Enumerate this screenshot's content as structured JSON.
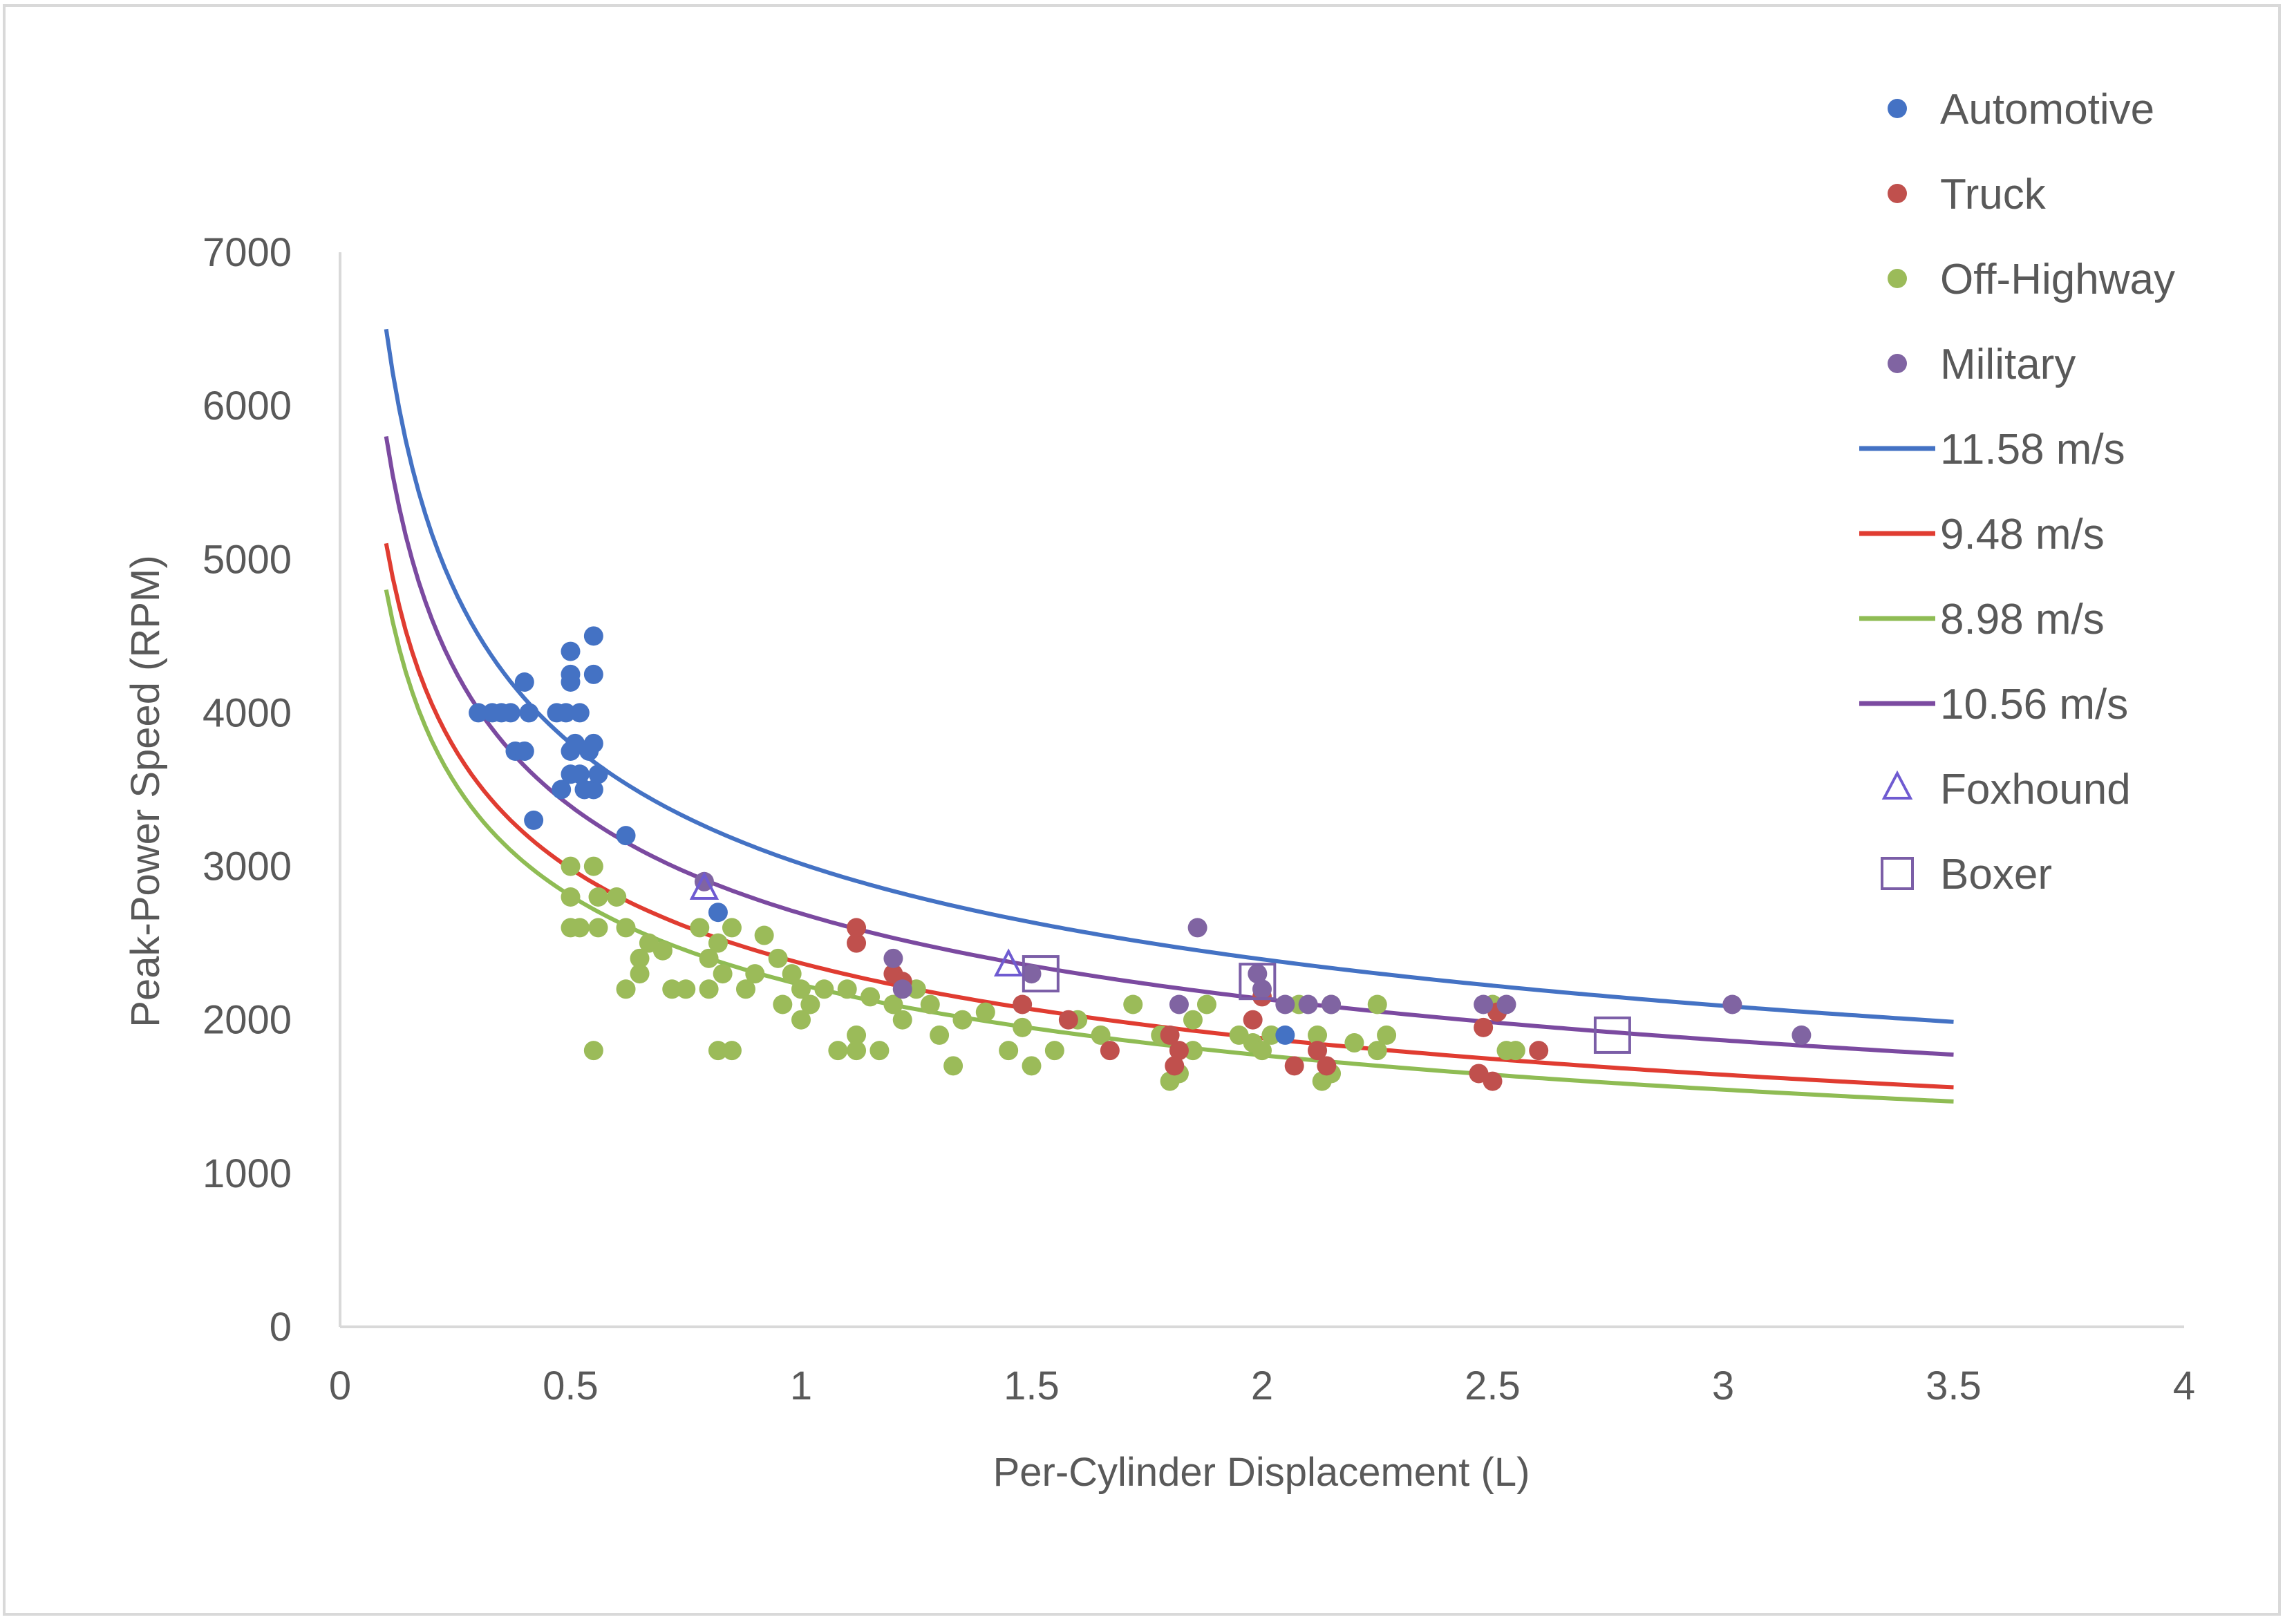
{
  "chart_data": {
    "type": "scatter",
    "title": "",
    "xlabel": "Per-Cylinder Displacement (L)",
    "ylabel": "Peak-Power Speed (RPM)",
    "xlim": [
      0,
      4
    ],
    "ylim": [
      0,
      7000
    ],
    "x_ticks": [
      "0",
      "0.5",
      "1",
      "1.5",
      "2",
      "2.5",
      "3",
      "3.5",
      "4"
    ],
    "y_ticks": [
      "0",
      "1000",
      "2000",
      "3000",
      "4000",
      "5000",
      "6000",
      "7000"
    ],
    "x_tick_values": [
      0,
      0.5,
      1,
      1.5,
      2,
      2.5,
      3,
      3.5,
      4
    ],
    "y_tick_values": [
      0,
      1000,
      2000,
      3000,
      4000,
      5000,
      6000,
      7000
    ],
    "grid": false,
    "legend_position": "top-right",
    "series": [
      {
        "name": "Automotive",
        "kind": "points",
        "color": "#4472c4",
        "marker": "circle",
        "points": [
          [
            0.3,
            4000
          ],
          [
            0.33,
            4000
          ],
          [
            0.35,
            4000
          ],
          [
            0.37,
            4000
          ],
          [
            0.38,
            3750
          ],
          [
            0.4,
            3750
          ],
          [
            0.4,
            4200
          ],
          [
            0.41,
            4000
          ],
          [
            0.42,
            3300
          ],
          [
            0.47,
            4000
          ],
          [
            0.48,
            3500
          ],
          [
            0.49,
            4000
          ],
          [
            0.5,
            4200
          ],
          [
            0.5,
            4250
          ],
          [
            0.5,
            4400
          ],
          [
            0.5,
            3600
          ],
          [
            0.5,
            3750
          ],
          [
            0.51,
            3800
          ],
          [
            0.52,
            4000
          ],
          [
            0.52,
            3600
          ],
          [
            0.53,
            3500
          ],
          [
            0.54,
            3750
          ],
          [
            0.55,
            4500
          ],
          [
            0.55,
            4250
          ],
          [
            0.55,
            3500
          ],
          [
            0.55,
            3800
          ],
          [
            0.56,
            3600
          ],
          [
            0.62,
            3200
          ],
          [
            0.82,
            2700
          ],
          [
            2.05,
            1900
          ]
        ]
      },
      {
        "name": "Truck",
        "kind": "points",
        "color": "#c0504d",
        "marker": "circle",
        "points": [
          [
            1.12,
            2500
          ],
          [
            1.12,
            2600
          ],
          [
            1.2,
            2300
          ],
          [
            1.22,
            2250
          ],
          [
            1.48,
            2100
          ],
          [
            1.58,
            2000
          ],
          [
            1.67,
            1800
          ],
          [
            1.8,
            1900
          ],
          [
            1.81,
            1700
          ],
          [
            1.82,
            1800
          ],
          [
            1.98,
            2000
          ],
          [
            2.0,
            2150
          ],
          [
            2.07,
            1700
          ],
          [
            2.12,
            1800
          ],
          [
            2.14,
            1700
          ],
          [
            2.47,
            1650
          ],
          [
            2.48,
            1950
          ],
          [
            2.5,
            1600
          ],
          [
            2.51,
            2050
          ],
          [
            2.6,
            1800
          ]
        ]
      },
      {
        "name": "Off-Highway",
        "kind": "points",
        "color": "#9bbb59",
        "marker": "circle",
        "points": [
          [
            0.5,
            3000
          ],
          [
            0.5,
            2800
          ],
          [
            0.5,
            2600
          ],
          [
            0.52,
            2600
          ],
          [
            0.55,
            3000
          ],
          [
            0.56,
            2800
          ],
          [
            0.55,
            1800
          ],
          [
            0.56,
            2600
          ],
          [
            0.6,
            2800
          ],
          [
            0.62,
            2200
          ],
          [
            0.62,
            2600
          ],
          [
            0.65,
            2400
          ],
          [
            0.65,
            2300
          ],
          [
            0.67,
            2500
          ],
          [
            0.7,
            2450
          ],
          [
            0.72,
            2200
          ],
          [
            0.75,
            2200
          ],
          [
            0.78,
            2600
          ],
          [
            0.8,
            2400
          ],
          [
            0.8,
            2200
          ],
          [
            0.82,
            2500
          ],
          [
            0.83,
            2300
          ],
          [
            0.82,
            1800
          ],
          [
            0.85,
            2600
          ],
          [
            0.85,
            1800
          ],
          [
            0.88,
            2200
          ],
          [
            0.9,
            2300
          ],
          [
            0.92,
            2550
          ],
          [
            0.95,
            2400
          ],
          [
            0.96,
            2100
          ],
          [
            0.98,
            2300
          ],
          [
            1.0,
            2000
          ],
          [
            1.0,
            2200
          ],
          [
            1.02,
            2100
          ],
          [
            1.05,
            2200
          ],
          [
            1.08,
            1800
          ],
          [
            1.1,
            2200
          ],
          [
            1.12,
            1900
          ],
          [
            1.12,
            1800
          ],
          [
            1.15,
            2150
          ],
          [
            1.17,
            1800
          ],
          [
            1.2,
            2100
          ],
          [
            1.22,
            2000
          ],
          [
            1.25,
            2200
          ],
          [
            1.28,
            2100
          ],
          [
            1.3,
            1900
          ],
          [
            1.33,
            1700
          ],
          [
            1.35,
            2000
          ],
          [
            1.4,
            2050
          ],
          [
            1.45,
            1800
          ],
          [
            1.48,
            1950
          ],
          [
            1.5,
            1700
          ],
          [
            1.55,
            1800
          ],
          [
            1.6,
            2000
          ],
          [
            1.65,
            1900
          ],
          [
            1.72,
            2100
          ],
          [
            1.78,
            1900
          ],
          [
            1.8,
            1600
          ],
          [
            1.82,
            1650
          ],
          [
            1.85,
            1800
          ],
          [
            1.85,
            2000
          ],
          [
            1.88,
            2100
          ],
          [
            1.95,
            1900
          ],
          [
            1.98,
            1850
          ],
          [
            2.0,
            1800
          ],
          [
            2.02,
            1900
          ],
          [
            2.08,
            2100
          ],
          [
            2.12,
            1900
          ],
          [
            2.13,
            1600
          ],
          [
            2.15,
            2100
          ],
          [
            2.15,
            1650
          ],
          [
            2.2,
            1850
          ],
          [
            2.25,
            1800
          ],
          [
            2.25,
            2100
          ],
          [
            2.27,
            1900
          ],
          [
            2.5,
            2100
          ],
          [
            2.53,
            1800
          ],
          [
            2.55,
            1800
          ]
        ]
      },
      {
        "name": "Military",
        "kind": "points",
        "color": "#8064a2",
        "marker": "circle",
        "points": [
          [
            0.79,
            2900
          ],
          [
            1.2,
            2400
          ],
          [
            1.22,
            2200
          ],
          [
            1.5,
            2300
          ],
          [
            1.82,
            2100
          ],
          [
            1.86,
            2600
          ],
          [
            1.99,
            2300
          ],
          [
            2.0,
            2200
          ],
          [
            2.05,
            2100
          ],
          [
            2.1,
            2100
          ],
          [
            2.15,
            2100
          ],
          [
            2.48,
            2100
          ],
          [
            2.53,
            2100
          ],
          [
            3.02,
            2100
          ],
          [
            3.17,
            1900
          ]
        ]
      },
      {
        "name": "11.58 m/s",
        "kind": "curve",
        "color": "#4472c4",
        "x_range": [
          0.1,
          3.5
        ],
        "model": "rpm = 3016.5 / D^(1/3)"
      },
      {
        "name": "9.48 m/s",
        "kind": "curve",
        "color": "#e03c31",
        "x_range": [
          0.1,
          3.5
        ],
        "model": "rpm = 2368.8 / D^(1/3)"
      },
      {
        "name": "8.98 m/s",
        "kind": "curve",
        "color": "#8fbc54",
        "x_range": [
          0.1,
          3.5
        ],
        "model": "rpm = 2228.6 / D^(1/3)"
      },
      {
        "name": "10.56 m/s",
        "kind": "curve",
        "color": "#7b4aa0",
        "x_range": [
          0.1,
          3.5
        ],
        "model": "rpm = 2692.2 / D^(1/3)"
      },
      {
        "name": "Foxhound",
        "kind": "points",
        "color": "#6f5bd1",
        "marker": "triangle-open",
        "points": [
          [
            0.79,
            2850
          ],
          [
            1.45,
            2350
          ]
        ]
      },
      {
        "name": "Boxer",
        "kind": "points",
        "color": "#7b5ea7",
        "marker": "square-open",
        "points": [
          [
            1.52,
            2300
          ],
          [
            1.99,
            2250
          ],
          [
            2.76,
            1900
          ]
        ]
      }
    ],
    "curve_coefficients": {
      "11.58 m/s": 3016.5,
      "9.48 m/s": 2368.8,
      "8.98 m/s": 2228.6,
      "10.56 m/s": 2692.2
    }
  }
}
